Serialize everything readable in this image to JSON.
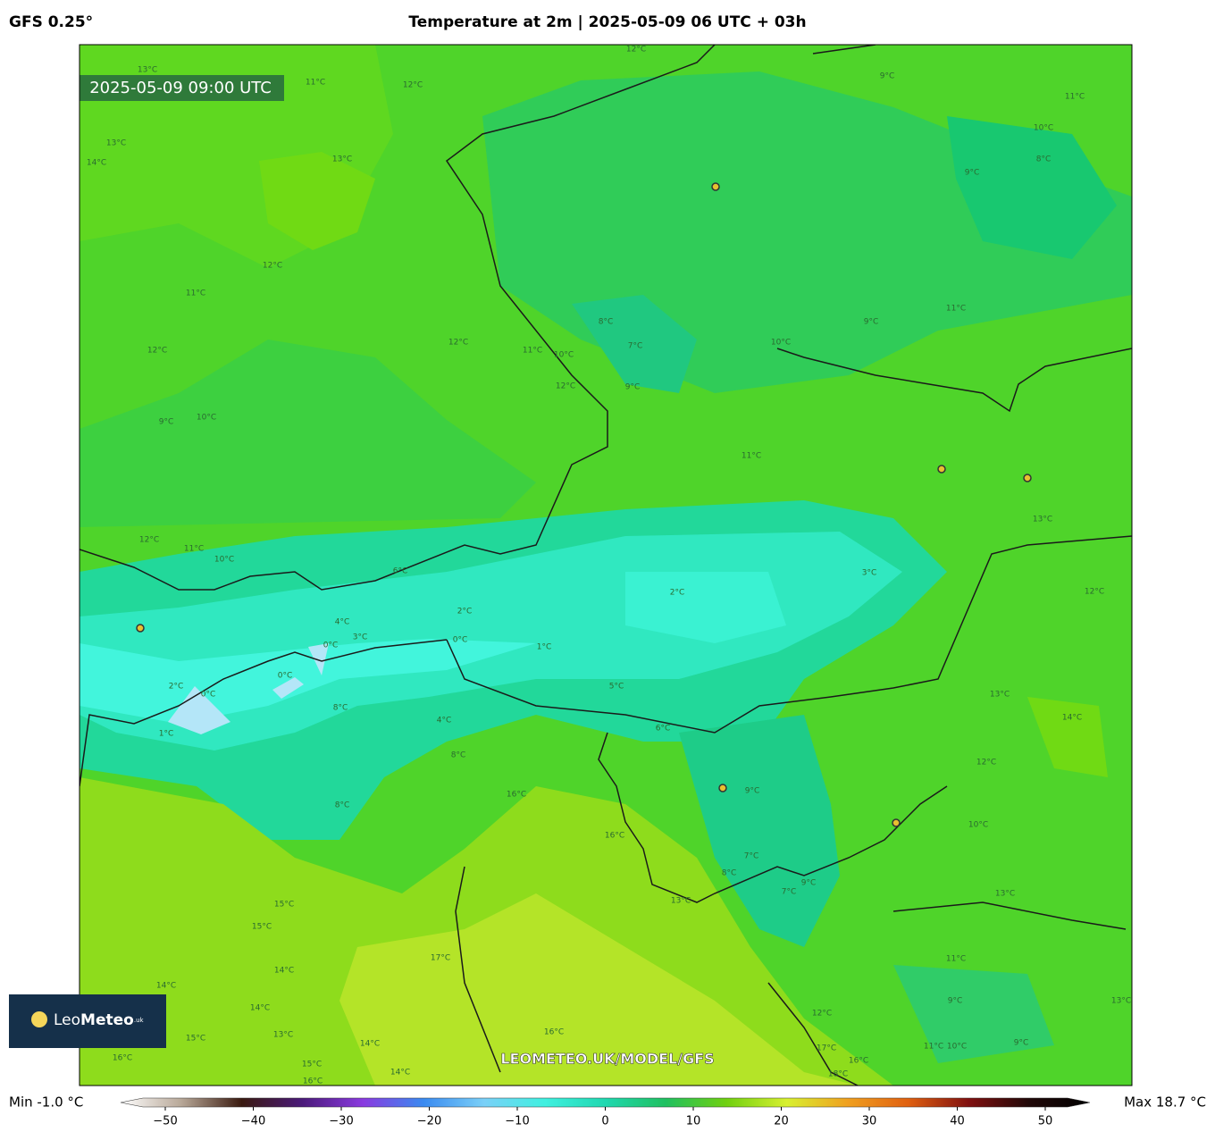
{
  "header": {
    "model": "GFS 0.25°",
    "title": "Temperature at 2m | 2025-05-09 06 UTC + 03h"
  },
  "map": {
    "valid_time": "2025-05-09 09:00 UTC",
    "watermark": "LEOMETEO.UK/MODEL/GFS",
    "contour_labels": [
      "13°C",
      "11°C",
      "12°C",
      "12°C",
      "9°C",
      "11°C",
      "10°C",
      "8°C",
      "9°C",
      "13°C",
      "14°C",
      "13°C",
      "12°C",
      "11°C",
      "12°C",
      "12°C",
      "11°C",
      "10°C",
      "8°C",
      "7°C",
      "9°C",
      "12°C",
      "10°C",
      "9°C",
      "11°C",
      "9°C",
      "10°C",
      "11°C",
      "13°C",
      "12°C",
      "11°C",
      "10°C",
      "6°C",
      "3°C",
      "2°C",
      "2°C",
      "4°C",
      "3°C",
      "0°C",
      "0°C",
      "1°C",
      "12°C",
      "0°C",
      "2°C",
      "0°C",
      "5°C",
      "8°C",
      "4°C",
      "1°C",
      "6°C",
      "14°C",
      "13°C",
      "12°C",
      "8°C",
      "9°C",
      "16°C",
      "8°C",
      "10°C",
      "16°C",
      "7°C",
      "8°C",
      "7°C",
      "9°C",
      "13°C",
      "13°C",
      "15°C",
      "15°C",
      "17°C",
      "11°C",
      "14°C",
      "14°C",
      "9°C",
      "12°C",
      "14°C",
      "16°C",
      "13°C",
      "15°C",
      "9°C",
      "11°C",
      "10°C",
      "14°C",
      "17°C",
      "16°C",
      "16°C",
      "15°C",
      "16°C",
      "14°C",
      "18°C",
      "13°C"
    ]
  },
  "logo": {
    "light": "Leo",
    "bold": "Meteo",
    "suffix": ".uk"
  },
  "colorbar": {
    "min_label": "Min -1.0 °C",
    "max_label": "Max 18.7 °C",
    "colormap": [
      "#ffffff",
      "#b8a898",
      "#3a1a10",
      "#4b1a7a",
      "#8a3ae0",
      "#3a8af0",
      "#7ad0f8",
      "#40f0e0",
      "#20d8b0",
      "#20c060",
      "#70d010",
      "#d8f030",
      "#f0a020",
      "#e06010",
      "#801010",
      "#200808",
      "#000000"
    ],
    "ticks": [
      {
        "value": -50,
        "label": "−50"
      },
      {
        "value": -40,
        "label": "−40"
      },
      {
        "value": -30,
        "label": "−30"
      },
      {
        "value": -20,
        "label": "−20"
      },
      {
        "value": -10,
        "label": "−10"
      },
      0,
      10,
      20,
      30,
      40,
      50
    ]
  }
}
